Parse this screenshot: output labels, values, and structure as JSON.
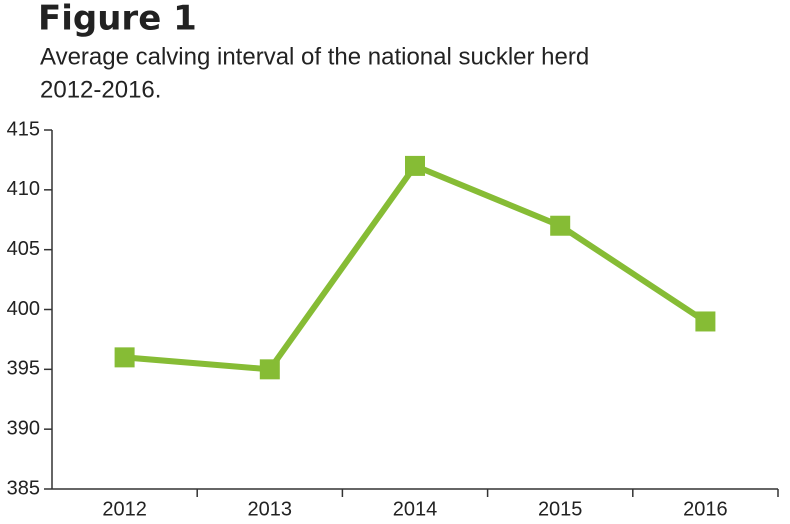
{
  "chart_data": {
    "type": "line",
    "title": "Figure 1",
    "subtitle": [
      "Average calving interval of the national suckler herd",
      "2012-2016."
    ],
    "categories": [
      "2012",
      "2013",
      "2014",
      "2015",
      "2016"
    ],
    "values": [
      396,
      395,
      412,
      407,
      399
    ],
    "color": "#86bc35",
    "ylim": [
      385,
      415
    ],
    "yticks": [
      385,
      390,
      395,
      400,
      405,
      410,
      415
    ]
  }
}
